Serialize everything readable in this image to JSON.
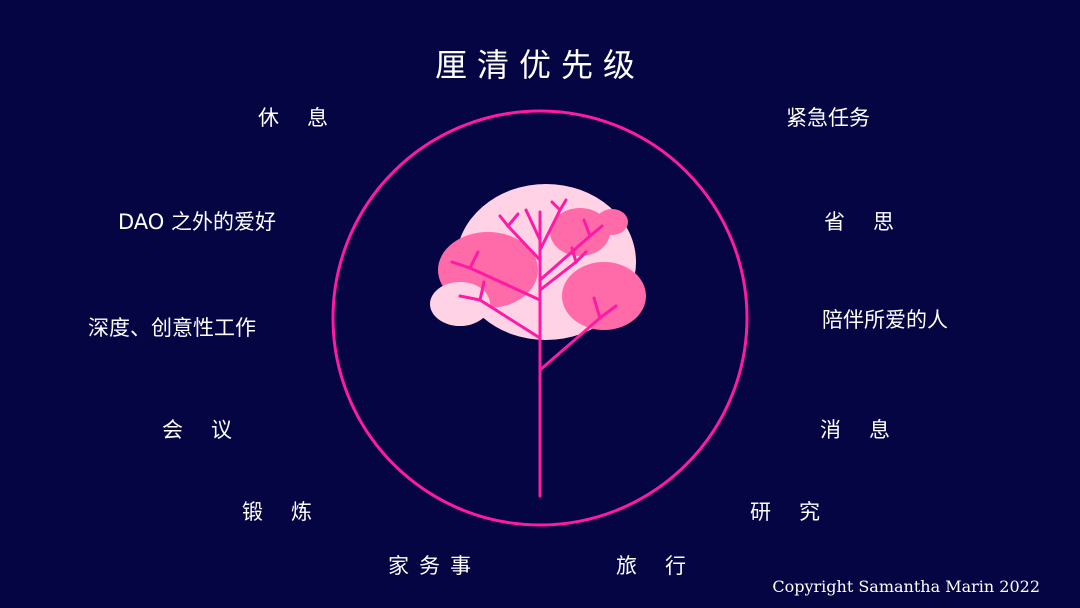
{
  "title": "厘清优先级",
  "colors": {
    "background": "#050544",
    "ring": "#ff1aa6",
    "branch": "#ff1aa6",
    "blossom_light": "#ffd3e5",
    "blossom_mid": "#ff6ba9",
    "text": "#ffffff"
  },
  "left_items": [
    "休息",
    "DAO 之外的爱好",
    "深度、创意性工作",
    "会议",
    "锻炼",
    "家务事"
  ],
  "right_items": [
    "紧急任务",
    "省思",
    "陪伴所爱的人",
    "消息",
    "研究",
    "旅行"
  ],
  "graphic": {
    "icon": "tree-icon"
  },
  "copyright": "Copyright Samantha Marin 2022"
}
